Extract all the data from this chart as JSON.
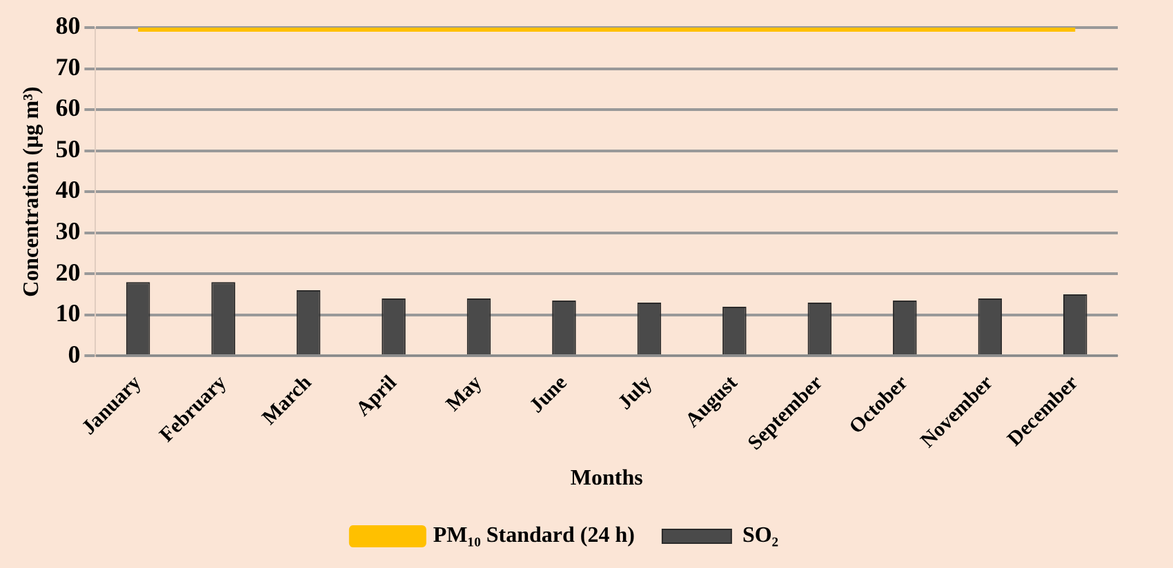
{
  "chart_data": {
    "type": "bar",
    "xlabel": "Months",
    "ylabel": "Concentration (µg m³)",
    "categories": [
      "January",
      "February",
      "March",
      "April",
      "May",
      "June",
      "July",
      "August",
      "September",
      "October",
      "November",
      "December"
    ],
    "series": [
      {
        "name": "SO₂",
        "color": "#4a4a4a",
        "values": [
          18,
          18,
          16,
          14,
          14,
          13.5,
          13,
          12,
          13,
          13.5,
          14,
          15
        ]
      },
      {
        "name": "PM₁₀ Standard (24 h)",
        "type": "line",
        "color": "#ffc000",
        "values": [
          80,
          80,
          80,
          80,
          80,
          80,
          80,
          80,
          80,
          80,
          80,
          80
        ]
      }
    ],
    "ylim": [
      0,
      80
    ],
    "yticks": [
      0,
      10,
      20,
      30,
      40,
      50,
      60,
      70,
      80
    ],
    "grid": "y",
    "legend": "bottom",
    "marker": "none"
  }
}
